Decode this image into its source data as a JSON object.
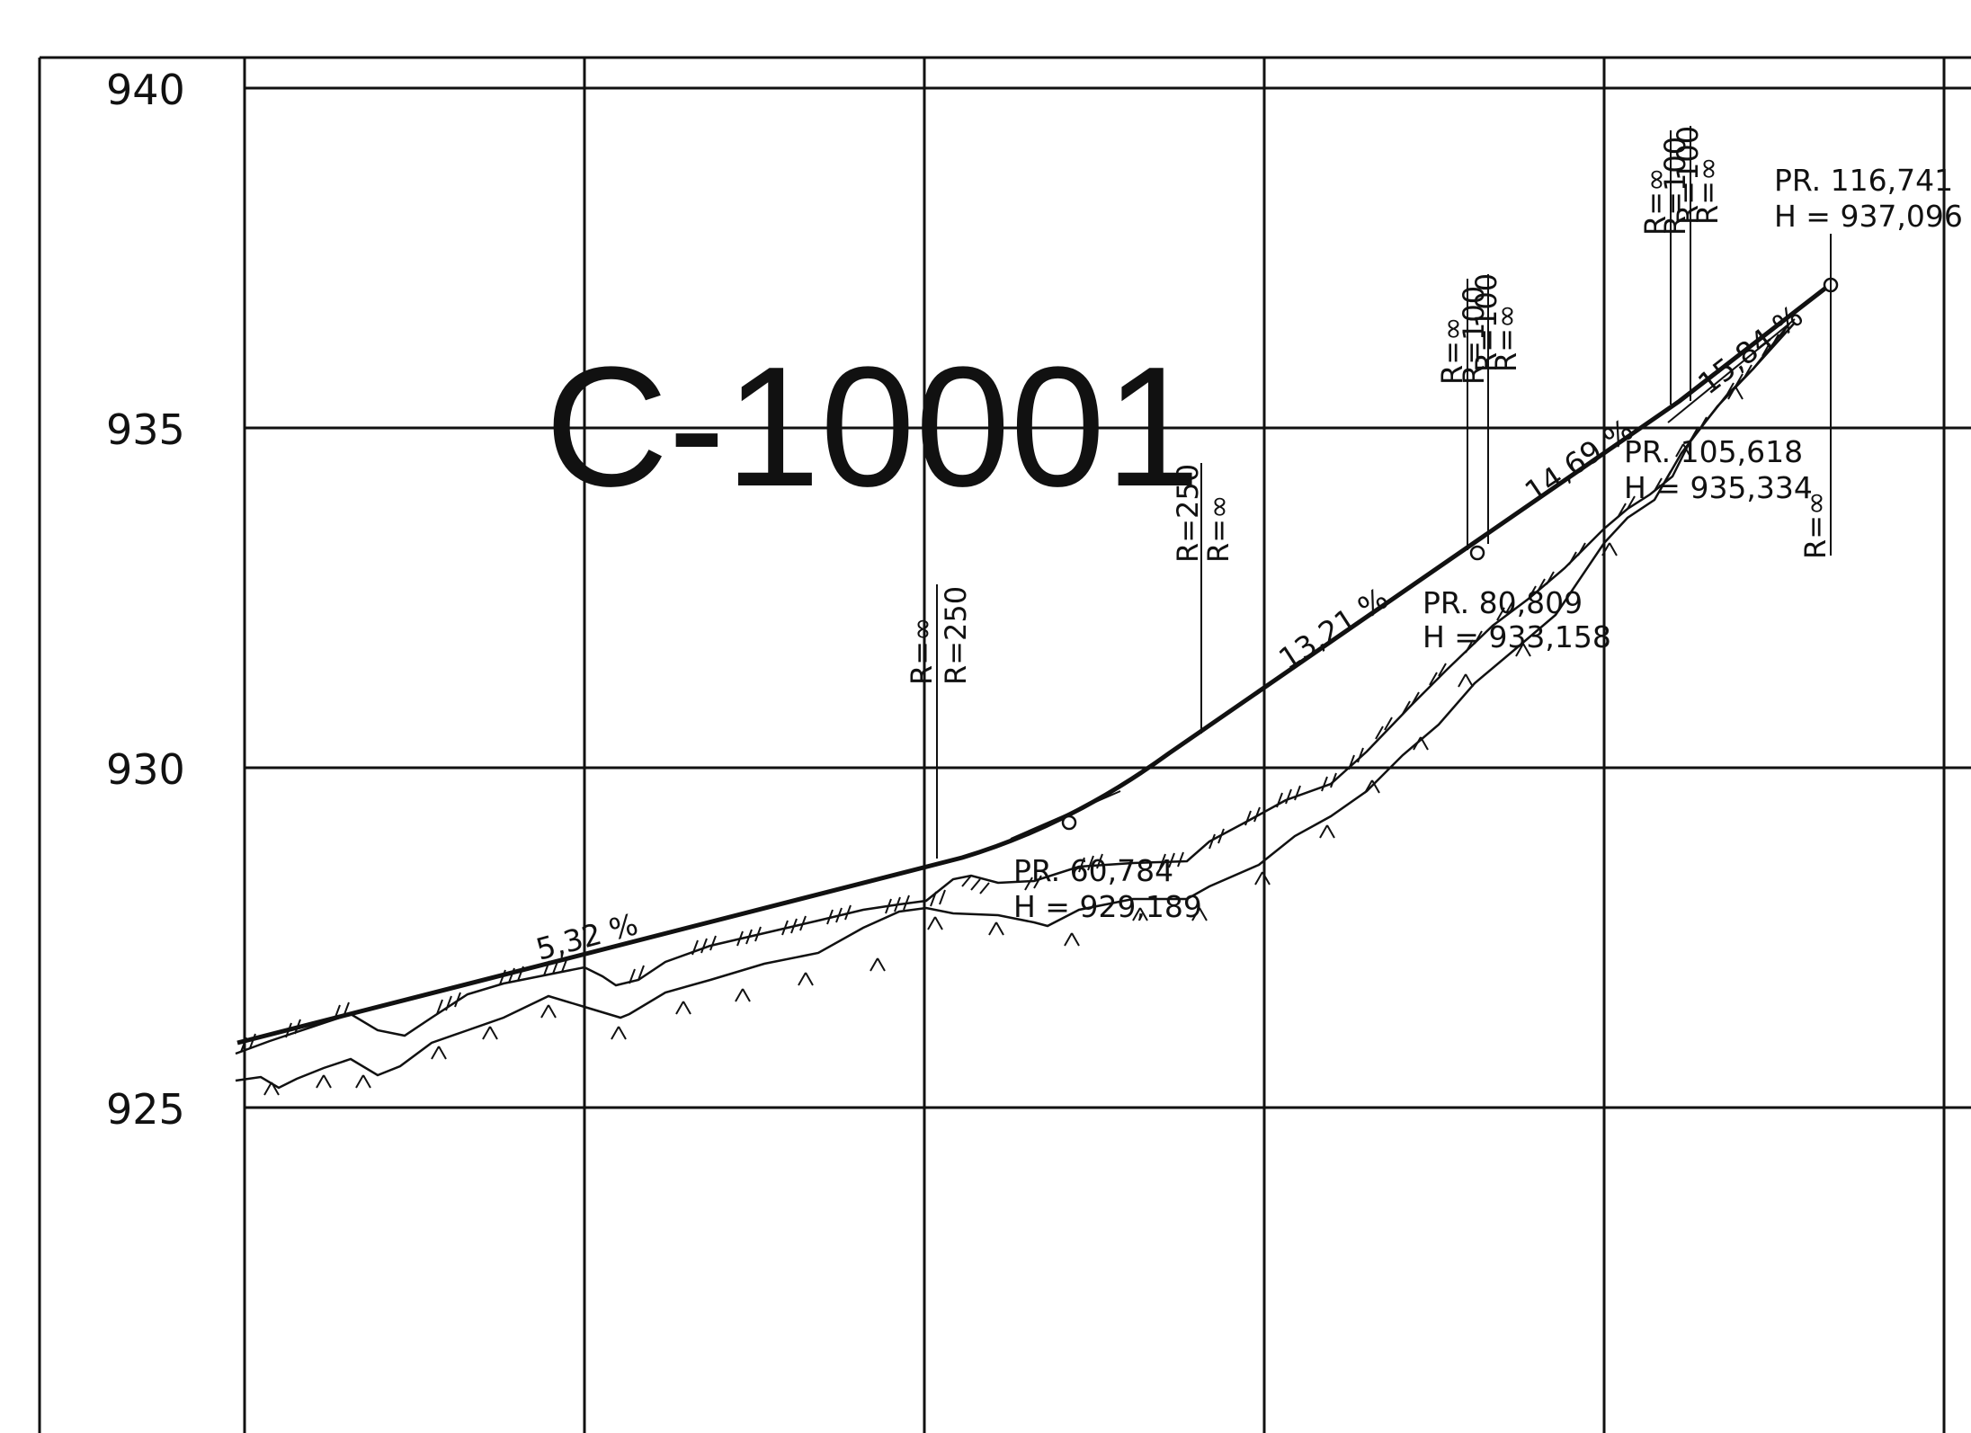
{
  "title": "C-10001",
  "elevation_labels": [
    "940",
    "935",
    "930",
    "925"
  ],
  "grades": [
    "5,32 %",
    "13,21 %",
    "14,69 %",
    "15,84 %"
  ],
  "points": [
    {
      "station": "PR. 60,784",
      "height": "H = 929,189"
    },
    {
      "station": "PR. 80,809",
      "height": "H = 933,158"
    },
    {
      "station": "PR. 105,618",
      "height": "H = 935,334"
    },
    {
      "station": "PR. 116,741",
      "height": "H = 937,096"
    }
  ],
  "radii": {
    "vc1": [
      "R=∞",
      "R=250"
    ],
    "vc2": [
      "R=250",
      "R=∞"
    ],
    "vc3": [
      "R=∞",
      "R=100",
      "R=100",
      "R=∞"
    ],
    "vc4": [
      "R=∞",
      "R=100",
      "R=100",
      "R=∞"
    ],
    "vc5": [
      "R=∞"
    ]
  },
  "colors": {
    "ink": "#111111",
    "background": "#ffffff"
  }
}
